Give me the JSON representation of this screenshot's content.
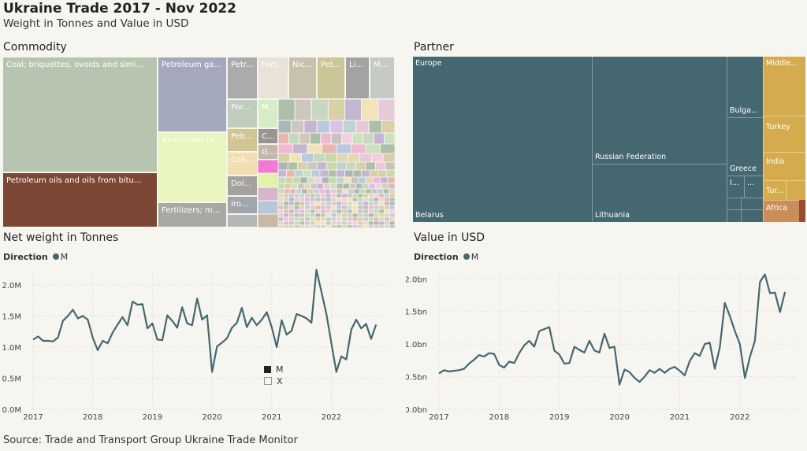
{
  "header": {
    "title": "Ukraine Trade 2017 - Nov 2022",
    "subtitle": "Weight in Tonnes and Value in USD"
  },
  "sections": {
    "commodity": "Commodity",
    "partner": "Partner",
    "net_weight": "Net weight in Tonnes",
    "value_usd": "Value in USD"
  },
  "commodity_labels": {
    "coal": "Coal; briquettes, ovoids and simi...",
    "petroleum_oils": "Petroleum oils and oils from bitu...",
    "petroleum_gas": "Petroleum ga...",
    "aluminium": "Aluminium or...",
    "fertilizers": "Fertilizers; m...",
    "petr": "Petr...",
    "fert": "Fert...",
    "nic": "Nic...",
    "pet": "Pet...",
    "li": "Li...",
    "m_top": "M...",
    "por": "Por...",
    "m_mid": "M...",
    "peb": "Peb...",
    "c": "C...",
    "gl": "Gl...",
    "cok": "Cok...",
    "dol": "Dol...",
    "iro": "Iro..."
  },
  "partner_labels": {
    "europe": "Europe",
    "belarus": "Belarus",
    "russian_federation": "Russian Federation",
    "lithuania": "Lithuania",
    "bulgaria": "Bulga...",
    "greece": "Greece",
    "i": "I...",
    "dots": "...",
    "middle": "Middle...",
    "turkey": "Turkey",
    "india": "India",
    "tur": "Tur...",
    "africa": "Africa"
  },
  "legend": {
    "direction_label": "Direction",
    "series_m": "M",
    "series_x": "X"
  },
  "source": "Source: Trade and Transport Group Ukraine Trade Monitor",
  "colors": {
    "line": "#456770",
    "europe": "#456770",
    "coal": "#b7c5b0",
    "petroleum_oils": "#7c4734",
    "petroleum_gas": "#a4a8bd",
    "aluminium": "#e8f5bd",
    "asia": "#d4ac4e",
    "africa": "#c98e5a"
  },
  "chart_data": [
    {
      "type": "line",
      "title": "Net weight in Tonnes",
      "ylim": [
        0,
        2200000
      ],
      "y_ticks": [
        "0.0M",
        "0.5M",
        "1.0M",
        "1.5M",
        "2.0M"
      ],
      "y_tick_values": [
        0,
        500000,
        1000000,
        1500000,
        2000000
      ],
      "x_ticks": [
        "2017",
        "2018",
        "2019",
        "2020",
        "2021",
        "2022"
      ],
      "x_range": [
        "2017-01",
        "2022-11"
      ],
      "grid": true,
      "series": [
        {
          "name": "M",
          "values": [
            1120000,
            1170000,
            1100000,
            1100000,
            1090000,
            1150000,
            1420000,
            1500000,
            1600000,
            1460000,
            1500000,
            1440000,
            1150000,
            950000,
            1100000,
            1060000,
            1230000,
            1360000,
            1480000,
            1350000,
            1730000,
            1680000,
            1690000,
            1300000,
            1380000,
            1120000,
            1110000,
            1510000,
            1420000,
            1310000,
            1640000,
            1380000,
            1350000,
            1780000,
            1440000,
            1510000,
            600000,
            1010000,
            1070000,
            1140000,
            1310000,
            1390000,
            1630000,
            1320000,
            1470000,
            1350000,
            1440000,
            1560000,
            1320000,
            1000000,
            1430000,
            1200000,
            1260000,
            1530000,
            1500000,
            1460000,
            1390000,
            2240000,
            1890000,
            1530000,
            1060000,
            600000,
            850000,
            800000,
            1280000,
            1440000,
            1300000,
            1370000,
            1130000,
            1360000
          ]
        }
      ],
      "legend_overlay": [
        "M",
        "X"
      ]
    },
    {
      "type": "line",
      "title": "Value in USD",
      "ylim": [
        0,
        2100000000
      ],
      "y_ticks": [
        "0.0bn",
        "0.5bn",
        "1.0bn",
        "1.5bn",
        "2.0bn"
      ],
      "y_tick_values": [
        0,
        500000000,
        1000000000,
        1500000000,
        2000000000
      ],
      "x_ticks": [
        "2017",
        "2018",
        "2019",
        "2020",
        "2021",
        "2022"
      ],
      "x_range": [
        "2017-01",
        "2022-11"
      ],
      "grid": true,
      "series": [
        {
          "name": "M",
          "values": [
            550000000,
            600000000,
            580000000,
            590000000,
            600000000,
            620000000,
            700000000,
            760000000,
            830000000,
            810000000,
            860000000,
            850000000,
            680000000,
            640000000,
            730000000,
            710000000,
            860000000,
            980000000,
            1050000000,
            960000000,
            1200000000,
            1230000000,
            1260000000,
            900000000,
            840000000,
            700000000,
            710000000,
            960000000,
            910000000,
            870000000,
            1050000000,
            900000000,
            870000000,
            1160000000,
            940000000,
            960000000,
            380000000,
            610000000,
            570000000,
            480000000,
            420000000,
            500000000,
            600000000,
            560000000,
            620000000,
            560000000,
            620000000,
            650000000,
            590000000,
            520000000,
            740000000,
            860000000,
            820000000,
            1000000000,
            1020000000,
            620000000,
            950000000,
            1630000000,
            1430000000,
            1200000000,
            1000000000,
            480000000,
            800000000,
            1050000000,
            1950000000,
            2070000000,
            1780000000,
            1790000000,
            1490000000,
            1800000000
          ]
        }
      ]
    }
  ]
}
